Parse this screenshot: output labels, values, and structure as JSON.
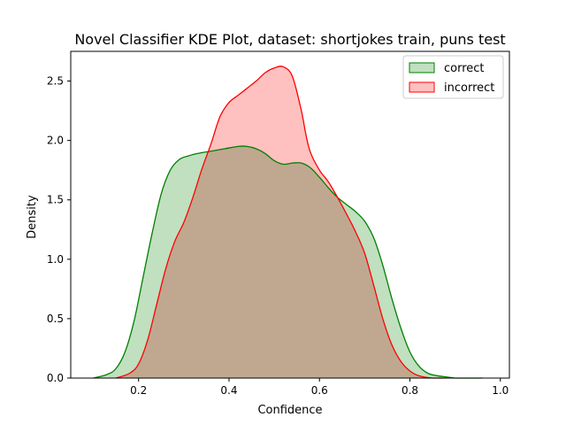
{
  "chart_data": {
    "type": "area",
    "title": "Novel Classifier KDE Plot, dataset: shortjokes train, puns test",
    "xlabel": "Confidence",
    "ylabel": "Density",
    "xlim": [
      0.05,
      1.02
    ],
    "ylim": [
      0,
      2.75
    ],
    "x_ticks": [
      "0.2",
      "0.4",
      "0.6",
      "0.8",
      "1.0"
    ],
    "y_ticks": [
      "0.0",
      "0.5",
      "1.0",
      "1.5",
      "2.0",
      "2.5"
    ],
    "grid": false,
    "legend_position": "top-right",
    "series": [
      {
        "name": "correct",
        "color": "#008000",
        "fill": "#c0e0c0",
        "x": [
          0.1,
          0.13,
          0.15,
          0.17,
          0.19,
          0.21,
          0.23,
          0.25,
          0.27,
          0.29,
          0.31,
          0.33,
          0.36,
          0.39,
          0.42,
          0.44,
          0.46,
          0.48,
          0.5,
          0.52,
          0.54,
          0.56,
          0.58,
          0.6,
          0.62,
          0.64,
          0.66,
          0.68,
          0.7,
          0.72,
          0.74,
          0.76,
          0.78,
          0.8,
          0.82,
          0.84,
          0.86,
          0.88,
          0.9,
          0.93,
          0.96
        ],
        "values": [
          0.0,
          0.03,
          0.08,
          0.22,
          0.48,
          0.85,
          1.22,
          1.55,
          1.75,
          1.84,
          1.87,
          1.89,
          1.91,
          1.93,
          1.95,
          1.95,
          1.93,
          1.89,
          1.83,
          1.8,
          1.81,
          1.81,
          1.77,
          1.69,
          1.6,
          1.52,
          1.46,
          1.4,
          1.32,
          1.18,
          0.95,
          0.67,
          0.42,
          0.22,
          0.1,
          0.04,
          0.02,
          0.01,
          0.0,
          0.0,
          0.0
        ]
      },
      {
        "name": "incorrect",
        "color": "#ff0000",
        "fill": "#ffc0c0",
        "x": [
          0.15,
          0.18,
          0.2,
          0.22,
          0.24,
          0.26,
          0.28,
          0.3,
          0.32,
          0.34,
          0.36,
          0.38,
          0.4,
          0.42,
          0.44,
          0.46,
          0.48,
          0.5,
          0.52,
          0.54,
          0.56,
          0.57,
          0.58,
          0.6,
          0.62,
          0.64,
          0.66,
          0.68,
          0.7,
          0.72,
          0.74,
          0.76,
          0.78,
          0.8,
          0.82,
          0.85,
          0.88
        ],
        "values": [
          0.0,
          0.04,
          0.12,
          0.32,
          0.62,
          0.92,
          1.15,
          1.31,
          1.52,
          1.76,
          1.97,
          2.2,
          2.32,
          2.38,
          2.44,
          2.5,
          2.57,
          2.61,
          2.62,
          2.54,
          2.25,
          2.05,
          1.9,
          1.75,
          1.65,
          1.52,
          1.38,
          1.23,
          1.05,
          0.78,
          0.5,
          0.28,
          0.14,
          0.06,
          0.02,
          0.0,
          0.0
        ]
      }
    ]
  }
}
